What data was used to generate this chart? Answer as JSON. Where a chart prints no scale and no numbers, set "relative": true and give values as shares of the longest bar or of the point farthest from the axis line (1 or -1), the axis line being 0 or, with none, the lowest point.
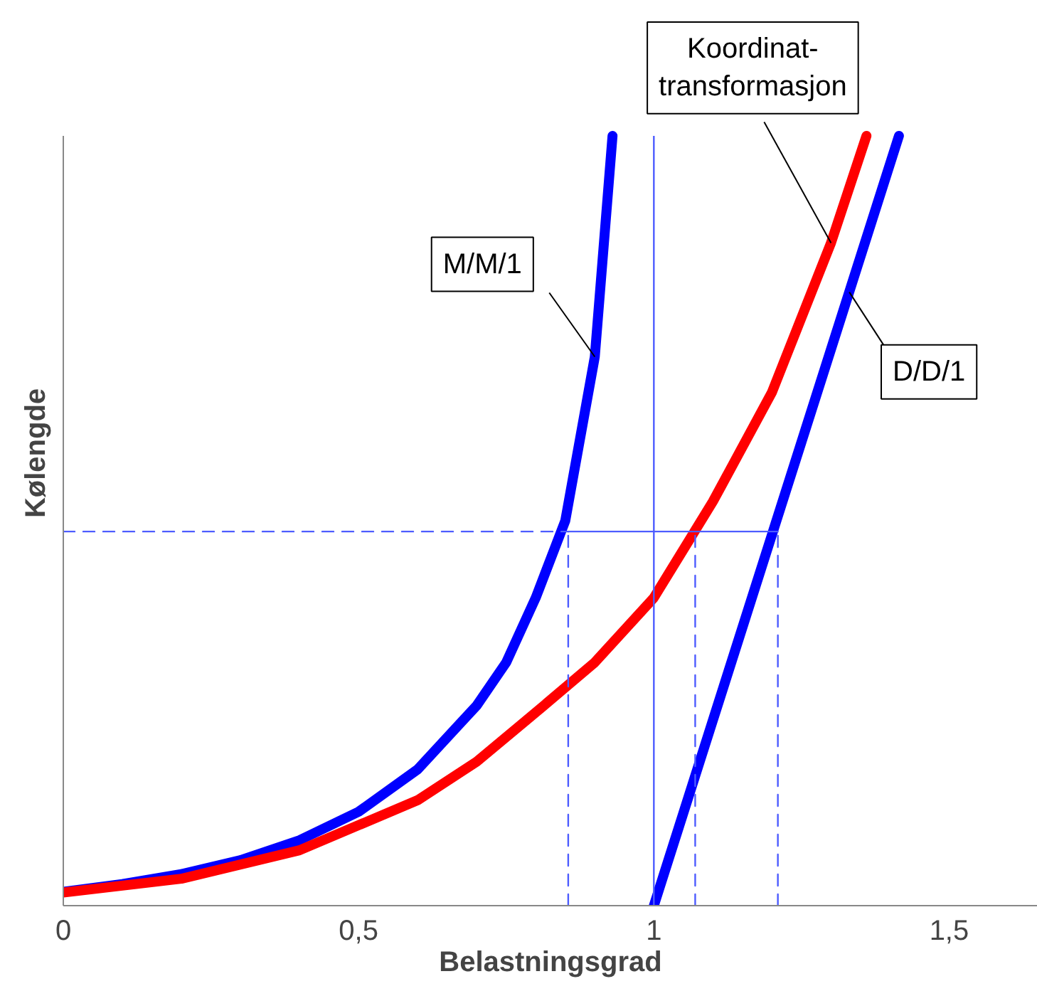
{
  "chart_data": {
    "type": "line",
    "relative": true,
    "xlabel": "Belastningsgrad",
    "ylabel": "Kølengde",
    "xlim": [
      0,
      1.65
    ],
    "xticks": [
      0,
      {
        "value": 0.5,
        "label": "0,5"
      },
      1,
      {
        "value": 1.5,
        "label": "1,5"
      }
    ],
    "grid": false,
    "series": [
      {
        "color": "#0000ff",
        "x": [
          0,
          0.1,
          0.2,
          0.3,
          0.4,
          0.5,
          0.6,
          0.7,
          0.75,
          0.8,
          0.85,
          0.9,
          0.93
        ],
        "values": [
          0.018,
          0.028,
          0.041,
          0.059,
          0.085,
          0.122,
          0.177,
          0.26,
          0.316,
          0.4,
          0.5,
          0.713,
          1.0
        ]
      },
      {
        "color": "#ff0000",
        "x": [
          0,
          0.2,
          0.4,
          0.6,
          0.7,
          0.8,
          0.9,
          1.0,
          1.1,
          1.2,
          1.3,
          1.36
        ],
        "values": [
          0.017,
          0.035,
          0.072,
          0.137,
          0.187,
          0.251,
          0.316,
          0.4,
          0.525,
          0.667,
          0.861,
          1.0
        ]
      },
      {
        "color": "#0000ff",
        "x": [
          1.0,
          1.415
        ],
        "values": [
          0,
          1.0
        ]
      },
      {
        "color": "#4d5cff",
        "line_style": "dashed",
        "x": [
          0,
          0.855
        ],
        "values": [
          0.486,
          0.486
        ]
      },
      {
        "color": "#4d5cff",
        "line_style": "solid",
        "x": [
          0.855,
          1.21
        ],
        "values": [
          0.486,
          0.486
        ]
      },
      {
        "color": "#4d5cff",
        "line_style": "dashed",
        "x": [
          0.855,
          0.855
        ],
        "values": [
          0,
          0.486
        ]
      },
      {
        "color": "#4d5cff",
        "line_style": "dashed",
        "x": [
          1.07,
          1.07
        ],
        "values": [
          0,
          0.486
        ]
      },
      {
        "color": "#4d5cff",
        "line_style": "dashed",
        "x": [
          1.21,
          1.21
        ],
        "values": [
          0,
          0.486
        ]
      }
    ],
    "ref_lines": [
      {
        "axis": "x",
        "value": 1,
        "color": "#4d5cff",
        "line_style": "solid"
      }
    ],
    "annotations": [
      {
        "text": "M/M/1",
        "x": 0.9,
        "y": 0.713
      },
      {
        "text": "Koordinat-\ntransformasjon",
        "x": 1.3,
        "y": 0.861
      },
      {
        "text": "D/D/1",
        "x": 1.331,
        "y": 0.797
      }
    ]
  }
}
